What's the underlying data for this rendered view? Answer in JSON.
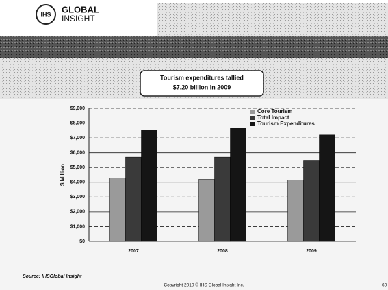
{
  "header": {
    "logo_mark": "IHS",
    "logo_line1": "GLOBAL",
    "logo_line2": "INSIGHT"
  },
  "chart_data": {
    "type": "bar",
    "title": [
      "Tourism expenditures  tallied",
      "$7.20 billion in 2009"
    ],
    "y_label": "$ Million",
    "categories": [
      "2007",
      "2008",
      "2009"
    ],
    "series": [
      {
        "name": "Core Tourism",
        "color": "#9a9a9a",
        "values": [
          4300,
          4200,
          4150
        ]
      },
      {
        "name": "Total Impact",
        "color": "#3a3a3a",
        "values": [
          5700,
          5700,
          5450
        ]
      },
      {
        "name": "Tourism Expenditures",
        "color": "#151515",
        "values": [
          7550,
          7650,
          7200
        ]
      }
    ],
    "ylim": [
      0,
      9000
    ],
    "yticks": [
      {
        "value": 0,
        "label": "$0"
      },
      {
        "value": 1000,
        "label": "$1,000"
      },
      {
        "value": 2000,
        "label": "$2,000"
      },
      {
        "value": 3000,
        "label": "$3,000"
      },
      {
        "value": 4000,
        "label": "$4,000"
      },
      {
        "value": 5000,
        "label": "$5,000"
      },
      {
        "value": 6000,
        "label": "$6,000"
      },
      {
        "value": 7000,
        "label": "$7,000"
      },
      {
        "value": 8000,
        "label": "$8,000"
      },
      {
        "value": 9000,
        "label": "$9,000"
      }
    ],
    "grid": true,
    "legend": "top-right"
  },
  "footer": {
    "source": "Source:  IHSGlobal Insight",
    "copyright": "Copyright 2010 © IHS Global Insight Inc.",
    "page": "60"
  }
}
